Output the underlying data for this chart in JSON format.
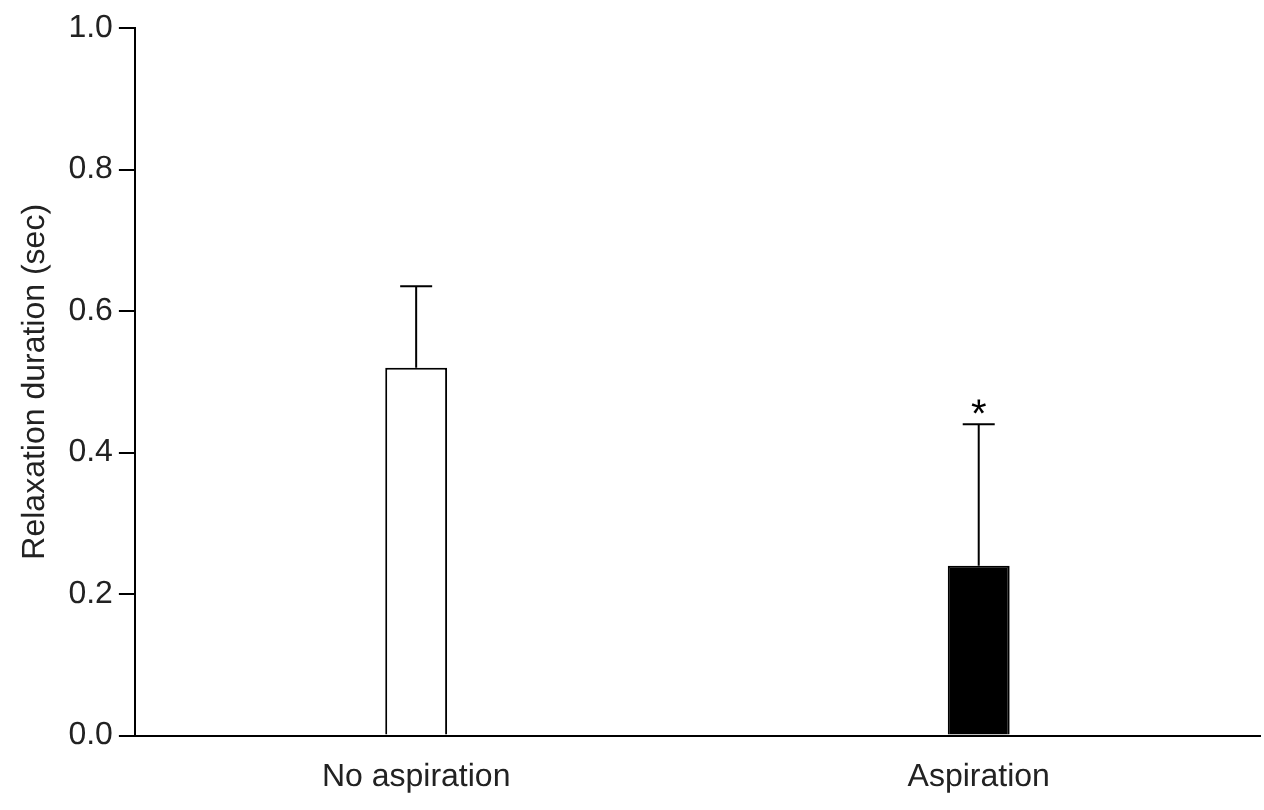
{
  "chart_data": {
    "type": "bar",
    "ylabel": "Relaxation duration (sec)",
    "categories": [
      "No aspiration",
      "Aspiration"
    ],
    "values": [
      0.52,
      0.24
    ],
    "colors": [
      "#ffffff",
      "#000000"
    ],
    "errors": [
      [
        0.52,
        0.635
      ],
      [
        0.24,
        0.44
      ]
    ],
    "ylim": [
      0,
      1
    ],
    "yticks": [
      {
        "value": 0,
        "label": "0.0"
      },
      0.2,
      0.4,
      0.6,
      0.8,
      {
        "value": 1,
        "label": "1.0"
      }
    ],
    "annotations": [
      {
        "text": "*",
        "x": "Aspiration",
        "y": 0.44
      }
    ],
    "grid": false,
    "legend": false
  }
}
